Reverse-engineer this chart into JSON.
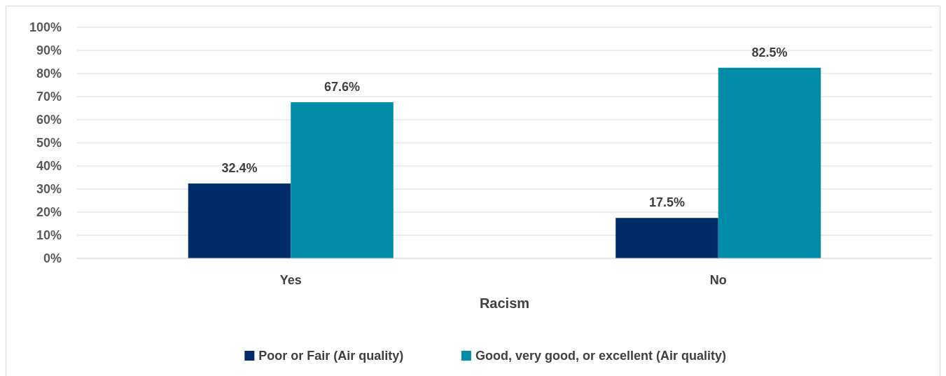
{
  "chart_data": {
    "type": "bar",
    "categories": [
      "Yes",
      "No"
    ],
    "xlabel": "Racism",
    "series": [
      {
        "name": "Poor or Fair (Air quality)",
        "color": "#002d6a",
        "values": [
          32.4,
          17.5
        ],
        "value_labels": [
          "32.4%",
          "17.5%"
        ]
      },
      {
        "name": "Good, very good, or excellent (Air quality)",
        "color": "#008ca8",
        "values": [
          67.6,
          82.5
        ],
        "value_labels": [
          "67.6%",
          "82.5%"
        ]
      }
    ],
    "ylim": [
      0,
      100
    ],
    "yticks": [
      {
        "value": 0,
        "label": "0%"
      },
      {
        "value": 10,
        "label": "10%"
      },
      {
        "value": 20,
        "label": "20%"
      },
      {
        "value": 30,
        "label": "30%"
      },
      {
        "value": 40,
        "label": "40%"
      },
      {
        "value": 50,
        "label": "50%"
      },
      {
        "value": 60,
        "label": "60%"
      },
      {
        "value": 70,
        "label": "70%"
      },
      {
        "value": 80,
        "label": "80%"
      },
      {
        "value": 90,
        "label": "90%"
      },
      {
        "value": 100,
        "label": "100%"
      }
    ],
    "grid": "y",
    "legend": "bottom"
  }
}
